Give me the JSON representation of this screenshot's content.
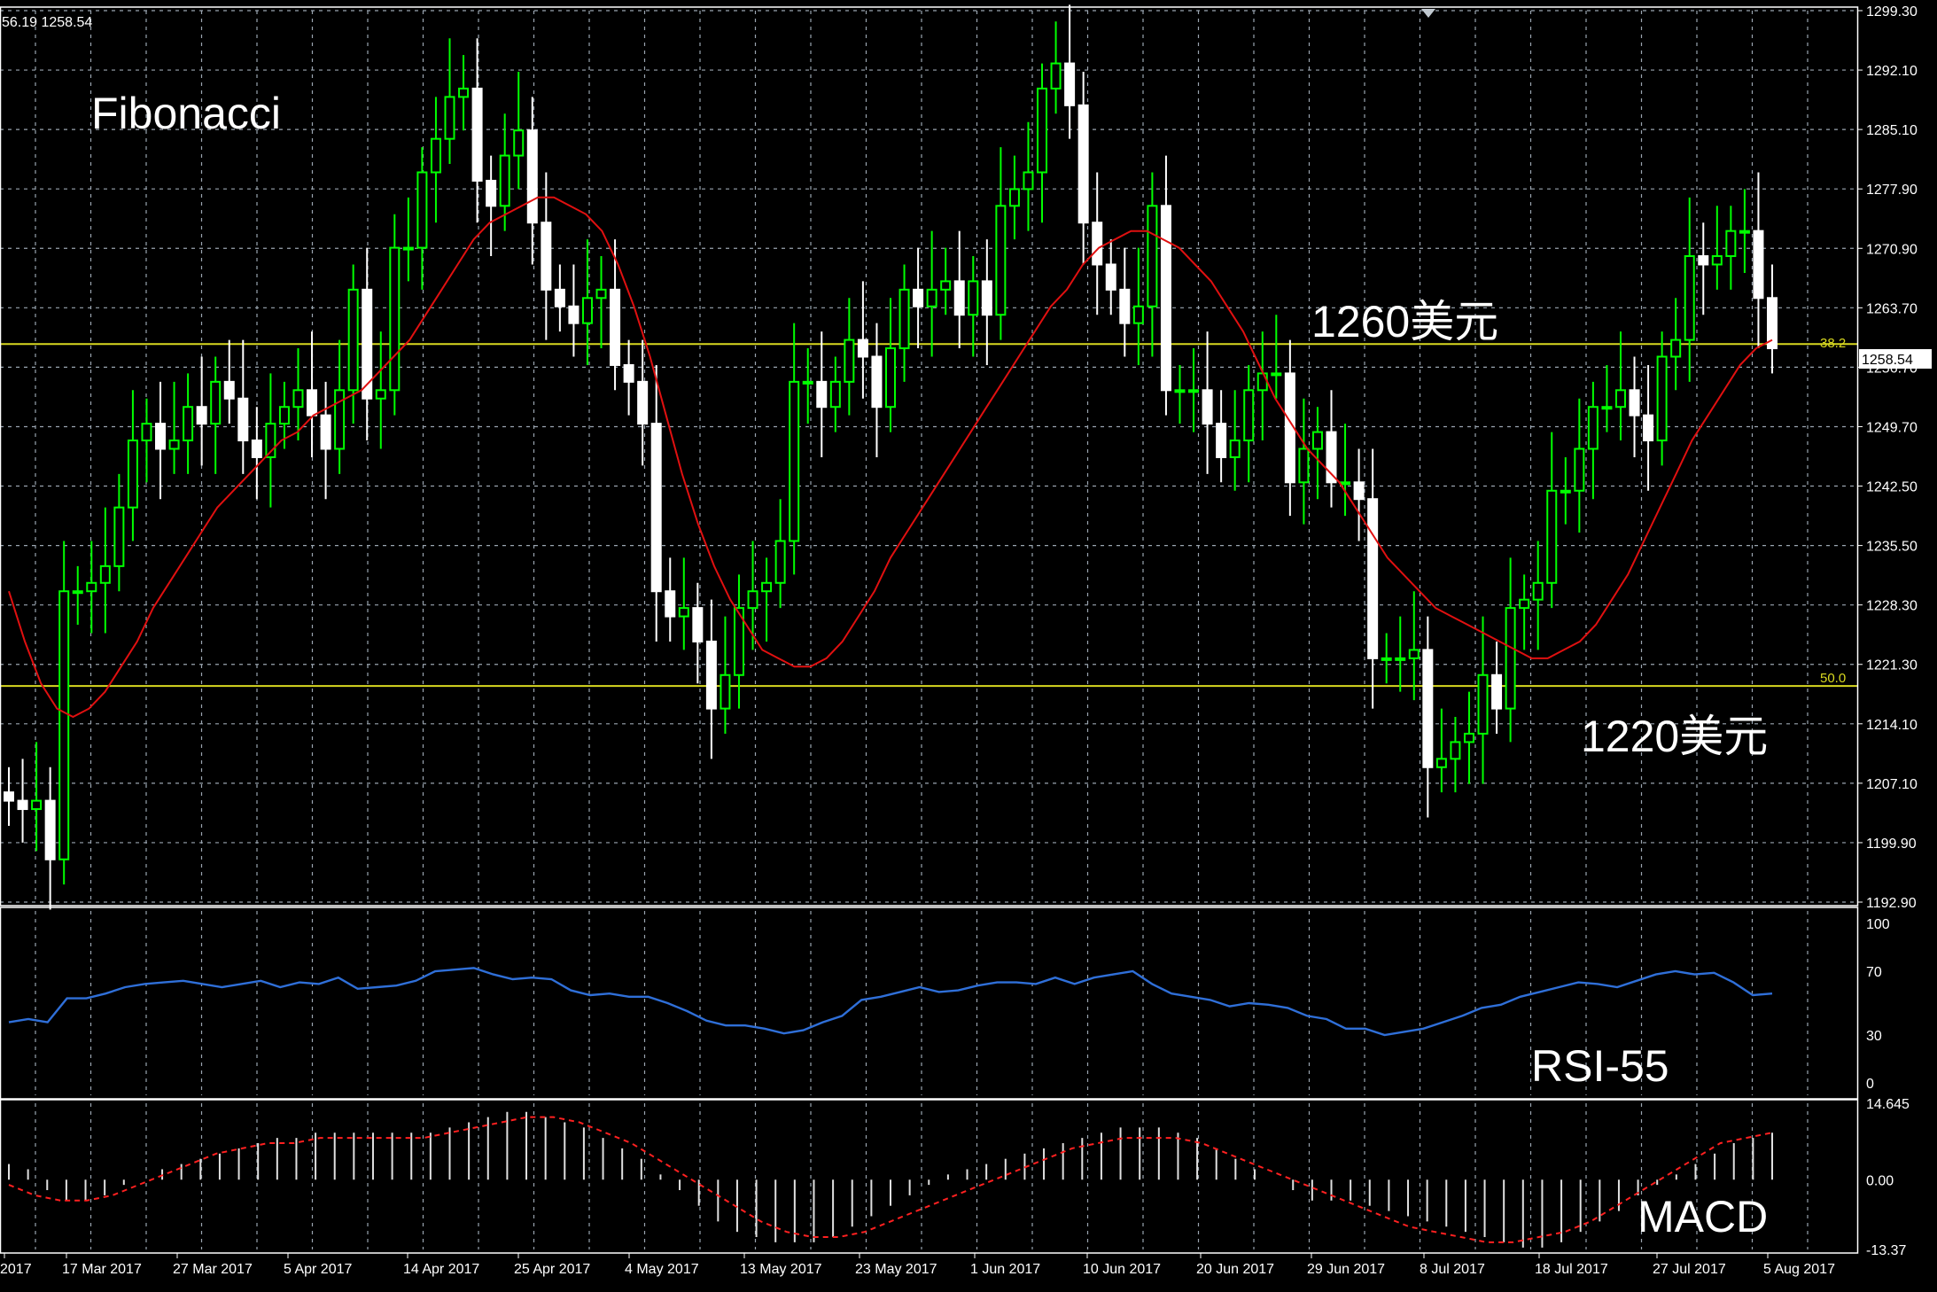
{
  "header": {
    "text": "56.19 1258.54"
  },
  "colors": {
    "background": "#000000",
    "grid": "#9aa5b0",
    "bull": "#00ff00",
    "bear": "#ffffff",
    "ma": "#e01010",
    "fib": "#d8d820",
    "rsi": "#2f6fd8",
    "macd_signal": "#ff2020",
    "macd_hist": "#e0e0e0",
    "frame": "#ffffff"
  },
  "price_panel": {
    "ylim": [
      1192.9,
      1299.3
    ],
    "yticks": [
      "1299.30",
      "1292.10",
      "1285.10",
      "1277.90",
      "1270.90",
      "1263.70",
      "1256.70",
      "1249.70",
      "1242.50",
      "1235.50",
      "1228.30",
      "1221.30",
      "1214.10",
      "1207.10",
      "1199.90",
      "1192.90"
    ],
    "current_price": "1258.54",
    "annotations": {
      "title": "Fibonacci",
      "upper": "1260美元",
      "lower": "1220美元"
    },
    "fib_levels": [
      {
        "label": "38.2",
        "value": 1259.5
      },
      {
        "label": "50.0",
        "value": 1218.7
      }
    ]
  },
  "rsi_panel": {
    "label": "RSI-55",
    "yticks": [
      "100",
      "70",
      "30",
      "0"
    ],
    "ylim": [
      0,
      100
    ]
  },
  "macd_panel": {
    "label": "MACD",
    "yticks": [
      "14.645",
      "0.00",
      "-13.37"
    ],
    "ylim": [
      -13.37,
      14.645
    ]
  },
  "x_axis": {
    "ticks": [
      "2017",
      "17 Mar 2017",
      "27 Mar 2017",
      "5 Apr 2017",
      "14 Apr 2017",
      "25 Apr 2017",
      "4 May 2017",
      "13 May 2017",
      "23 May 2017",
      "1 Jun 2017",
      "10 Jun 2017",
      "20 Jun 2017",
      "29 Jun 2017",
      "8 Jul 2017",
      "18 Jul 2017",
      "27 Jul 2017",
      "5 Aug 2017"
    ]
  },
  "chart_data": [
    {
      "type": "candlestick",
      "title": "Fibonacci",
      "ylim": [
        1192.9,
        1299.3
      ],
      "fib_levels": {
        "38.2": 1259.5,
        "50.0": 1218.7
      },
      "close_series": [
        1205,
        1204,
        1205,
        1198,
        1230,
        1230,
        1231,
        1233,
        1240,
        1248,
        1250,
        1247,
        1248,
        1252,
        1250,
        1255,
        1253,
        1248,
        1246,
        1250,
        1252,
        1254,
        1251,
        1247,
        1254,
        1266,
        1253,
        1254,
        1271,
        1271,
        1280,
        1284,
        1289,
        1290,
        1279,
        1276,
        1282,
        1285,
        1274,
        1266,
        1264,
        1262,
        1265,
        1266,
        1257,
        1255,
        1250,
        1230,
        1227,
        1228,
        1224,
        1216,
        1220,
        1228,
        1230,
        1231,
        1236,
        1255,
        1255,
        1252,
        1255,
        1260,
        1258,
        1252,
        1259,
        1266,
        1264,
        1266,
        1267,
        1263,
        1267,
        1263,
        1276,
        1278,
        1280,
        1290,
        1293,
        1288,
        1274,
        1269,
        1266,
        1262,
        1264,
        1276,
        1254,
        1254,
        1254,
        1250,
        1246,
        1248,
        1254,
        1256,
        1256,
        1243,
        1247,
        1249,
        1243,
        1243,
        1241,
        1222,
        1222,
        1222,
        1223,
        1209,
        1210,
        1212,
        1213,
        1220,
        1216,
        1228,
        1229,
        1231,
        1242,
        1242,
        1247,
        1252,
        1252,
        1254,
        1251,
        1248,
        1258,
        1260,
        1270,
        1269,
        1270,
        1273,
        1273,
        1265,
        1259
      ],
      "ma_series": [
        1230,
        1224,
        1219,
        1216,
        1215,
        1216,
        1218,
        1221,
        1224,
        1228,
        1231,
        1234,
        1237,
        1240,
        1242,
        1244,
        1246,
        1248,
        1249,
        1251,
        1252,
        1253,
        1254,
        1256,
        1258,
        1260,
        1263,
        1266,
        1269,
        1272,
        1274,
        1275,
        1276,
        1277,
        1277,
        1276,
        1275,
        1273,
        1269,
        1264,
        1258,
        1251,
        1244,
        1238,
        1233,
        1229,
        1226,
        1223,
        1222,
        1221,
        1221,
        1222,
        1224,
        1227,
        1230,
        1234,
        1237,
        1240,
        1243,
        1246,
        1249,
        1252,
        1255,
        1258,
        1261,
        1264,
        1266,
        1269,
        1271,
        1272,
        1273,
        1273,
        1272,
        1271,
        1269,
        1267,
        1264,
        1261,
        1257,
        1253,
        1250,
        1247,
        1245,
        1243,
        1240,
        1237,
        1234,
        1232,
        1230,
        1228,
        1227,
        1226,
        1225,
        1224,
        1223,
        1222,
        1222,
        1223,
        1224,
        1226,
        1229,
        1232,
        1236,
        1240,
        1244,
        1248,
        1251,
        1254,
        1257,
        1259,
        1260
      ],
      "current_price": 1258.54
    },
    {
      "type": "line",
      "title": "RSI-55",
      "ylim": [
        0,
        100
      ],
      "levels": [
        30,
        70
      ],
      "values": [
        38,
        40,
        38,
        53,
        53,
        56,
        60,
        62,
        63,
        64,
        62,
        60,
        62,
        64,
        60,
        63,
        62,
        66,
        59,
        60,
        61,
        64,
        70,
        71,
        72,
        68,
        65,
        66,
        65,
        58,
        55,
        56,
        54,
        54,
        50,
        45,
        39,
        36,
        36,
        34,
        31,
        33,
        38,
        42,
        52,
        54,
        57,
        60,
        57,
        58,
        61,
        63,
        63,
        62,
        66,
        62,
        66,
        68,
        70,
        62,
        56,
        54,
        52,
        48,
        50,
        49,
        47,
        42,
        40,
        34,
        34,
        30,
        32,
        34,
        38,
        42,
        47,
        49,
        54,
        57,
        60,
        63,
        62,
        60,
        64,
        68,
        70,
        68,
        69,
        63,
        55,
        56
      ]
    },
    {
      "type": "bar",
      "title": "MACD",
      "ylim": [
        -13.37,
        14.645
      ],
      "histogram": [
        3,
        2,
        -2,
        -4,
        -4,
        -3,
        -1,
        0,
        2,
        3,
        4,
        5,
        6,
        7,
        8,
        8,
        9,
        9,
        9,
        9,
        9,
        9,
        9,
        10,
        11,
        12,
        13,
        13,
        12,
        11,
        10,
        8,
        6,
        4,
        1,
        -2,
        -5,
        -8,
        -10,
        -11,
        -12,
        -12,
        -12,
        -11,
        -9,
        -7,
        -5,
        -3,
        -1,
        1,
        2,
        3,
        4,
        5,
        6,
        7,
        8,
        9,
        10,
        10,
        10,
        9,
        8,
        6,
        4,
        2,
        0,
        -2,
        -4,
        -4,
        -4,
        -5,
        -6,
        -7,
        -8,
        -9,
        -10,
        -11,
        -12,
        -13,
        -13,
        -12,
        -10,
        -8,
        -6,
        -3,
        -1,
        1,
        3,
        5,
        7,
        8,
        9
      ],
      "signal": [
        -1,
        -3,
        -4,
        -4,
        -3,
        -1,
        1,
        3,
        5,
        6,
        7,
        7,
        8,
        8,
        8,
        8,
        8,
        9,
        10,
        11,
        12,
        12,
        11,
        9,
        7,
        4,
        1,
        -2,
        -5,
        -8,
        -10,
        -11,
        -11,
        -10,
        -8,
        -6,
        -4,
        -2,
        0,
        2,
        4,
        6,
        7,
        8,
        8,
        8,
        7,
        5,
        3,
        1,
        -1,
        -3,
        -5,
        -7,
        -9,
        -10,
        -11,
        -12,
        -12,
        -11,
        -10,
        -8,
        -5,
        -2,
        1,
        4,
        7,
        8,
        9
      ]
    }
  ]
}
